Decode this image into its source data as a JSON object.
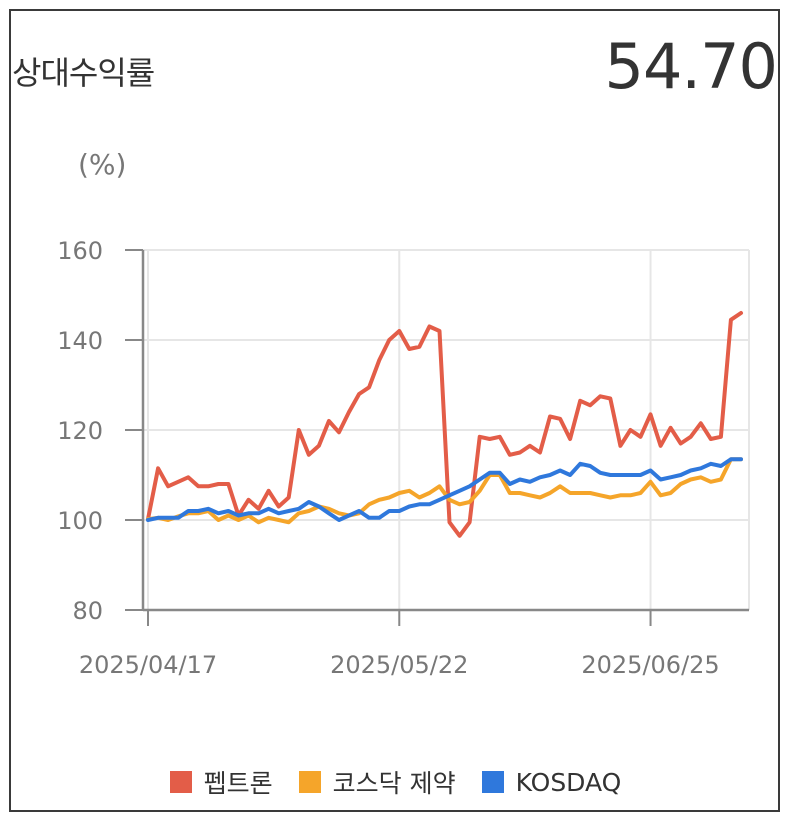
{
  "header": {
    "title": "상대수익률",
    "value": "54.70"
  },
  "colors": {
    "series_1": "#e35d48",
    "series_2": "#f5a52a",
    "series_3": "#2f78dc"
  },
  "chart_data": {
    "type": "line",
    "unit": "(%)",
    "ylim": [
      80,
      160
    ],
    "y_ticks": [
      "160",
      "140",
      "120",
      "100",
      "80"
    ],
    "x_tick_labels": [
      "2025/04/17",
      "2025/05/22",
      "2025/06/25"
    ],
    "x_tick_index": [
      0,
      25,
      50
    ],
    "grid": true,
    "legend_position": "bottom",
    "series": [
      {
        "name": "펩트론",
        "values": [
          100.2,
          111.5,
          107.5,
          108.5,
          109.5,
          107.5,
          107.5,
          108,
          108,
          101,
          104.5,
          102.5,
          106.5,
          103,
          105,
          120,
          114.5,
          116.5,
          122,
          119.5,
          124,
          128,
          129.5,
          135.5,
          140,
          142,
          138,
          138.5,
          143,
          142,
          99.5,
          96.5,
          99.5,
          118.5,
          118,
          118.5,
          114.5,
          115,
          116.5,
          115,
          123,
          122.5,
          118,
          126.5,
          125.5,
          127.5,
          127,
          116.5,
          120,
          118.5,
          123.5,
          116.5,
          120.5,
          117,
          118.5,
          121.5,
          118,
          118.5,
          144.5,
          146
        ]
      },
      {
        "name": "코스닥 제약",
        "values": [
          100.2,
          100.5,
          100,
          100.8,
          101.5,
          101.5,
          102,
          100,
          101,
          100,
          101,
          99.5,
          100.5,
          100,
          99.5,
          101.5,
          102,
          103,
          102.5,
          101.5,
          101,
          101.5,
          103.5,
          104.5,
          105,
          106,
          106.5,
          105,
          106,
          107.5,
          104.5,
          103.5,
          104,
          106.5,
          110,
          110,
          106,
          106,
          105.5,
          105,
          106,
          107.5,
          106,
          106,
          106,
          105.5,
          105,
          105.5,
          105.5,
          106,
          108.5,
          105.5,
          106,
          108,
          109,
          109.5,
          108.5,
          109,
          113.5,
          113.5
        ]
      },
      {
        "name": "KOSDAQ",
        "values": [
          100,
          100.5,
          100.5,
          100.5,
          102,
          102,
          102.5,
          101.5,
          102,
          101,
          101.5,
          101.5,
          102.5,
          101.5,
          102,
          102.5,
          104,
          103,
          101.5,
          100,
          101,
          102,
          100.5,
          100.5,
          102,
          102,
          103,
          103.5,
          103.5,
          104.5,
          105.5,
          106.5,
          107.5,
          109,
          110.5,
          110.5,
          108,
          109,
          108.5,
          109.5,
          110,
          111,
          110,
          112.5,
          112,
          110.5,
          110,
          110,
          110,
          110,
          111,
          109,
          109.5,
          110,
          111,
          111.5,
          112.5,
          112,
          113.5,
          113.5
        ]
      }
    ]
  }
}
